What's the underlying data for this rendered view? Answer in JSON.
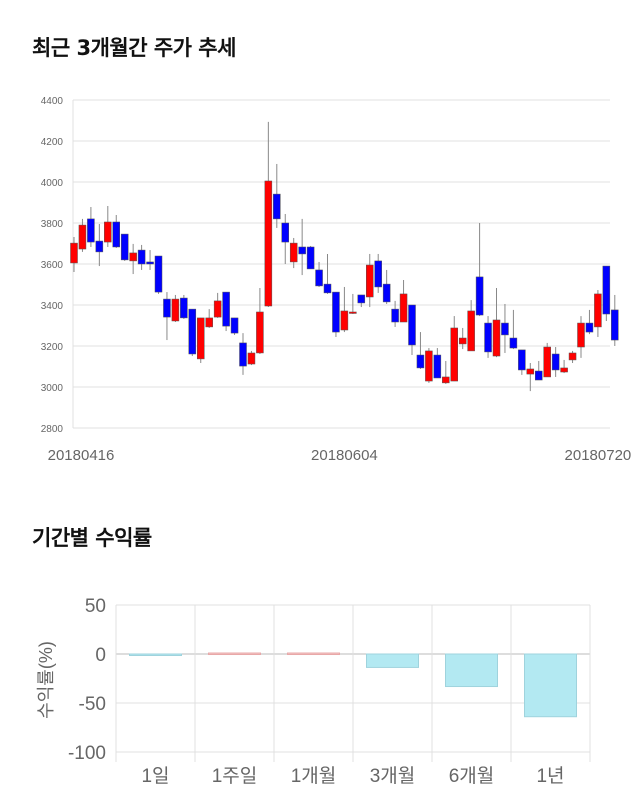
{
  "titles": {
    "price": "최근 3개월간 주가 추세",
    "returns": "기간별 수익률"
  },
  "colors": {
    "up": "#ff0000",
    "down": "#0000ff",
    "grid": "#e0e0e0",
    "bar_pos": "#f5c6c6",
    "bar_neg": "#b3e9f2"
  },
  "chart_data": [
    {
      "type": "candlestick",
      "title": "최근 3개월간 주가 추세",
      "ylim": [
        2800,
        4400
      ],
      "yticks": [
        "2800",
        "3000",
        "3200",
        "3400",
        "3600",
        "3800",
        "4000",
        "4200",
        "4400"
      ],
      "xlabels": [
        {
          "index": 0,
          "label": "20180416"
        },
        {
          "index": 32,
          "label": "20180604"
        },
        {
          "index": 62,
          "label": "20180720"
        }
      ],
      "ohlc": [
        [
          3605,
          3732,
          3561,
          3702
        ],
        [
          3673,
          3820,
          3659,
          3790
        ],
        [
          3820,
          3878,
          3683,
          3707
        ],
        [
          3712,
          3795,
          3590,
          3659
        ],
        [
          3707,
          3883,
          3683,
          3805
        ],
        [
          3805,
          3839,
          3678,
          3683
        ],
        [
          3746,
          3746,
          3615,
          3620
        ],
        [
          3615,
          3698,
          3551,
          3654
        ],
        [
          3668,
          3693,
          3571,
          3600
        ],
        [
          3610,
          3668,
          3571,
          3600
        ],
        [
          3639,
          3639,
          3454,
          3463
        ],
        [
          3429,
          3463,
          3229,
          3341
        ],
        [
          3322,
          3449,
          3317,
          3429
        ],
        [
          3434,
          3449,
          3332,
          3337
        ],
        [
          3380,
          3380,
          3151,
          3161
        ],
        [
          3137,
          3337,
          3117,
          3337
        ],
        [
          3293,
          3380,
          3288,
          3337
        ],
        [
          3341,
          3459,
          3337,
          3420
        ],
        [
          3463,
          3463,
          3273,
          3297
        ],
        [
          3337,
          3337,
          3254,
          3263
        ],
        [
          3215,
          3263,
          3059,
          3102
        ],
        [
          3112,
          3176,
          3107,
          3166
        ],
        [
          3166,
          3483,
          3161,
          3366
        ],
        [
          3395,
          4293,
          3390,
          4005
        ],
        [
          3941,
          4088,
          3776,
          3820
        ],
        [
          3800,
          3844,
          3600,
          3707
        ],
        [
          3610,
          3727,
          3580,
          3702
        ],
        [
          3683,
          3820,
          3546,
          3649
        ],
        [
          3683,
          3688,
          3576,
          3576
        ],
        [
          3571,
          3610,
          3488,
          3493
        ],
        [
          3502,
          3649,
          3454,
          3459
        ],
        [
          3463,
          3463,
          3244,
          3268
        ],
        [
          3278,
          3488,
          3268,
          3371
        ],
        [
          3366,
          3454,
          3356,
          3366
        ],
        [
          3449,
          3449,
          3390,
          3410
        ],
        [
          3439,
          3649,
          3390,
          3595
        ],
        [
          3615,
          3649,
          3459,
          3488
        ],
        [
          3502,
          3571,
          3405,
          3415
        ],
        [
          3380,
          3420,
          3293,
          3317
        ],
        [
          3317,
          3522,
          3317,
          3454
        ],
        [
          3400,
          3400,
          3156,
          3205
        ],
        [
          3156,
          3268,
          3088,
          3093
        ],
        [
          3029,
          3190,
          3020,
          3176
        ],
        [
          3156,
          3190,
          3044,
          3044
        ],
        [
          3020,
          3127,
          3015,
          3049
        ],
        [
          3029,
          3346,
          3029,
          3288
        ],
        [
          3210,
          3288,
          3185,
          3239
        ],
        [
          3176,
          3424,
          3176,
          3371
        ],
        [
          3537,
          3800,
          3346,
          3351
        ],
        [
          3312,
          3346,
          3142,
          3171
        ],
        [
          3151,
          3483,
          3146,
          3327
        ],
        [
          3312,
          3405,
          3166,
          3254
        ],
        [
          3239,
          3376,
          3185,
          3190
        ],
        [
          3181,
          3181,
          3059,
          3083
        ],
        [
          3063,
          3117,
          2980,
          3088
        ],
        [
          3078,
          3127,
          3034,
          3034
        ],
        [
          3049,
          3215,
          3049,
          3195
        ],
        [
          3161,
          3195,
          3049,
          3083
        ],
        [
          3073,
          3132,
          3068,
          3093
        ],
        [
          3132,
          3176,
          3117,
          3166
        ],
        [
          3195,
          3346,
          3142,
          3312
        ],
        [
          3312,
          3376,
          3258,
          3268
        ],
        [
          3293,
          3473,
          3244,
          3454
        ],
        [
          3590,
          3590,
          3322,
          3356
        ],
        [
          3376,
          3449,
          3200,
          3229
        ]
      ]
    },
    {
      "type": "bar",
      "title": "기간별 수익률",
      "ylabel": "수익률(%)",
      "ylim": [
        -100,
        50
      ],
      "yticks": [
        "50",
        "0",
        "-50",
        "-100"
      ],
      "categories": [
        "1일",
        "1주일",
        "1개월",
        "3개월",
        "6개월",
        "1년"
      ],
      "values": [
        -1.5,
        1,
        1,
        -13.7,
        -33.2,
        -64
      ]
    }
  ]
}
